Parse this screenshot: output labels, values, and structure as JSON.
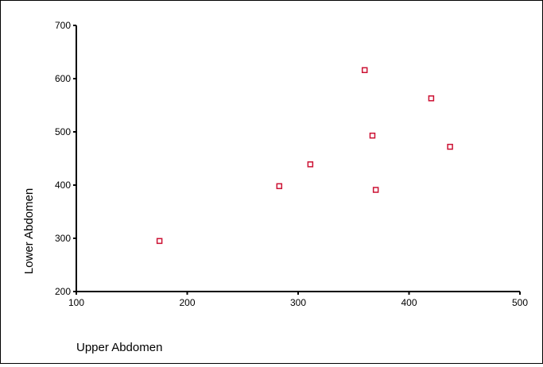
{
  "chart_data": {
    "type": "scatter",
    "xlabel": "Upper Abdomen",
    "ylabel": "Lower Abdomen",
    "xlim": [
      100,
      500
    ],
    "ylim": [
      200,
      700
    ],
    "x_ticks": [
      100,
      200,
      300,
      400,
      500
    ],
    "y_ticks": [
      200,
      300,
      400,
      500,
      600,
      700
    ],
    "grid": false,
    "marker": "hollow-square",
    "marker_color": "#cc1133",
    "points": [
      {
        "x": 175,
        "y": 295
      },
      {
        "x": 283,
        "y": 398
      },
      {
        "x": 311,
        "y": 439
      },
      {
        "x": 360,
        "y": 616
      },
      {
        "x": 367,
        "y": 493
      },
      {
        "x": 370,
        "y": 391
      },
      {
        "x": 420,
        "y": 563
      },
      {
        "x": 437,
        "y": 472
      }
    ]
  }
}
